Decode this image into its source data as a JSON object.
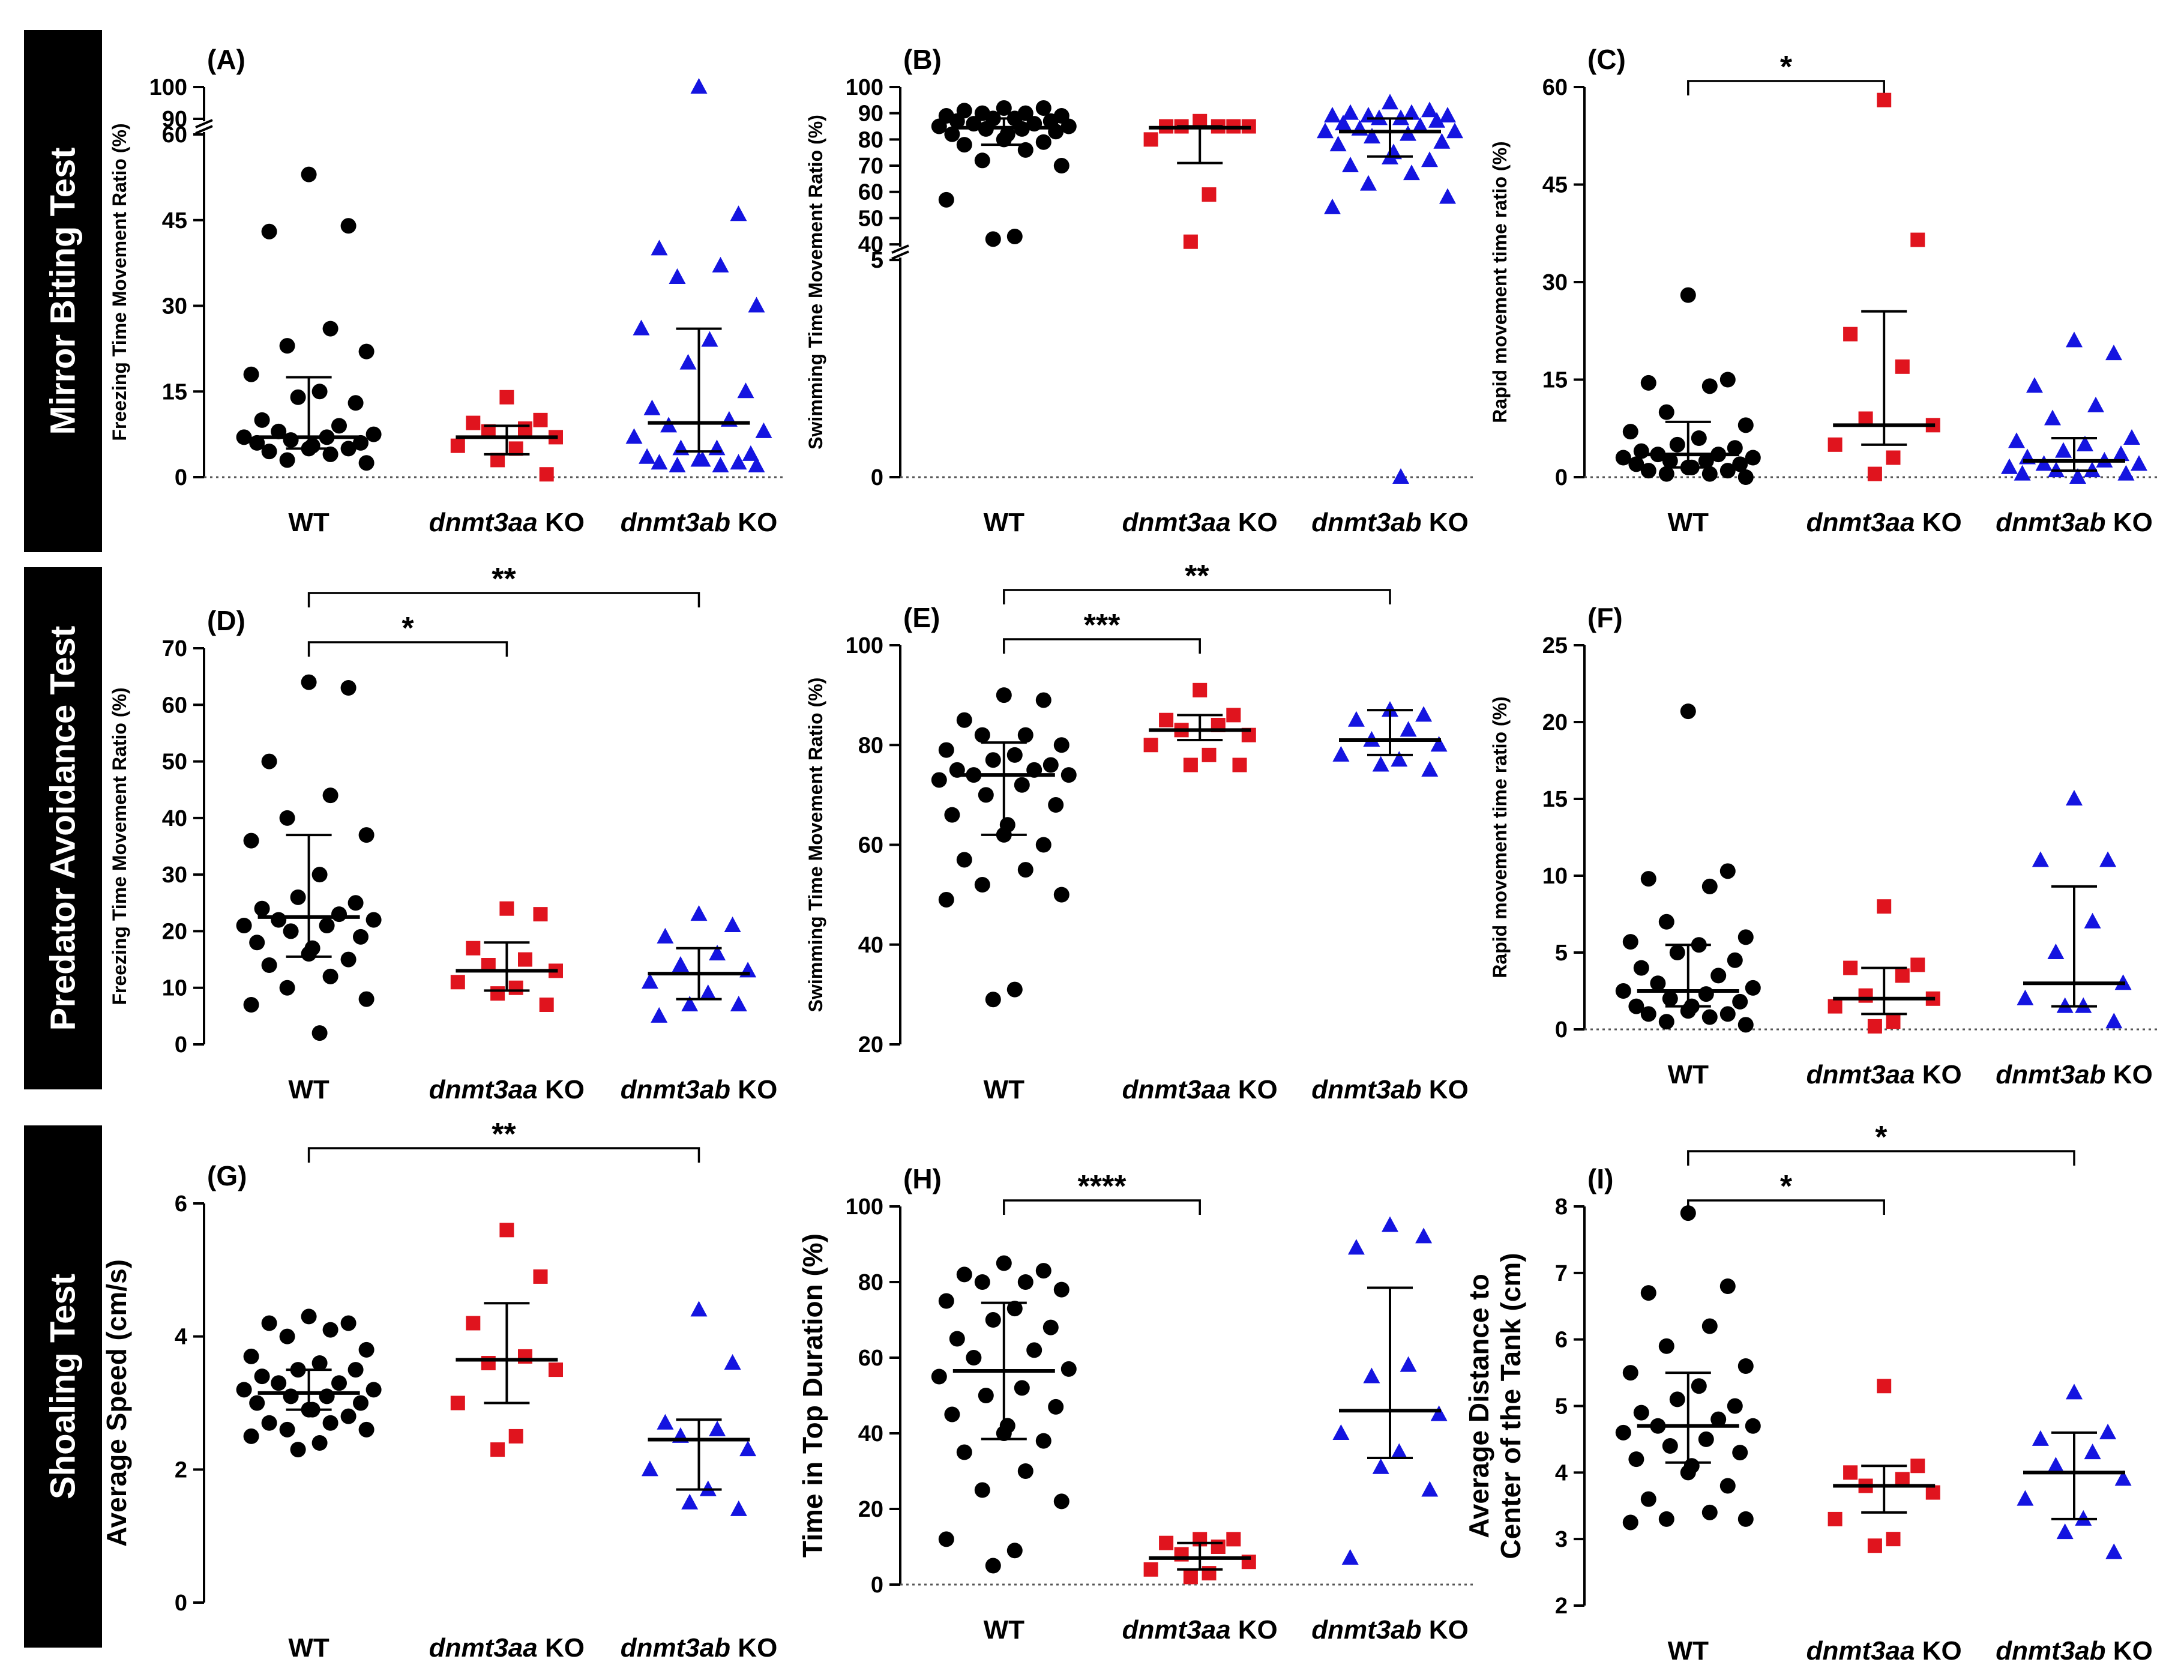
{
  "rows": [
    {
      "label": "Mirror Biting Test"
    },
    {
      "label": "Predator Avoidance Test"
    },
    {
      "label": "Shoaling Test"
    }
  ],
  "groups": [
    {
      "italic": "",
      "plain": "WT",
      "color": "#000000",
      "marker": "circle"
    },
    {
      "italic": "dnmt3aa",
      "plain": " KO",
      "color": "#e0141e",
      "marker": "square"
    },
    {
      "italic": "dnmt3ab",
      "plain": " KO",
      "color": "#1414e0",
      "marker": "triangle"
    }
  ],
  "chart_data": [
    {
      "type": "scatter",
      "panel": "(A)",
      "ylabel": "Freezing Time Movement Ratio (%)",
      "yticks": [
        0,
        15,
        30,
        45,
        60,
        90,
        100
      ],
      "ylim": [
        0,
        100
      ],
      "axis_break": [
        60,
        90
      ],
      "baseline_dotted": true,
      "series": [
        {
          "group": "WT",
          "median": 7,
          "q1": 5,
          "q3": 17.5,
          "values": [
            53,
            44,
            43,
            26,
            23,
            22,
            18,
            15,
            14,
            13,
            10,
            9,
            8,
            7.5,
            7,
            7,
            6.5,
            6,
            6,
            5.5,
            5,
            5,
            4.5,
            4,
            3,
            2.5
          ]
        },
        {
          "group": "dnmt3aa KO",
          "median": 7,
          "q1": 4,
          "q3": 9,
          "values": [
            14,
            10,
            9.5,
            8.5,
            8,
            7,
            5.5,
            5,
            3,
            0.5
          ]
        },
        {
          "group": "dnmt3ab KO",
          "median": 9.5,
          "q1": 4.5,
          "q3": 26,
          "values": [
            100,
            46,
            40,
            37,
            35,
            30,
            26,
            24,
            20,
            15,
            12,
            10,
            9,
            8,
            7,
            5,
            5,
            4,
            3.5,
            3,
            3,
            2.5,
            2.5,
            2,
            2,
            2
          ]
        }
      ]
    },
    {
      "type": "scatter",
      "panel": "(B)",
      "ylabel": "Swimming Time Movement  Ratio (%)",
      "yticks": [
        0,
        5,
        40,
        50,
        60,
        70,
        80,
        90,
        100
      ],
      "ylim": [
        0,
        100
      ],
      "axis_break": [
        5,
        40
      ],
      "baseline_dotted": true,
      "series": [
        {
          "group": "WT",
          "median": 84.5,
          "q1": 78,
          "q3": 88,
          "values": [
            92,
            92,
            91,
            90,
            90,
            89,
            89,
            88,
            88,
            87,
            87,
            86,
            86,
            85,
            85,
            84,
            84,
            83,
            82,
            82,
            80,
            79,
            78,
            76,
            72,
            70,
            57,
            43,
            42
          ]
        },
        {
          "group": "dnmt3aa KO",
          "median": 84.5,
          "q1": 71,
          "q3": 85,
          "values": [
            87,
            85,
            85,
            85,
            85,
            85,
            80,
            59,
            41
          ]
        },
        {
          "group": "dnmt3ab KO",
          "median": 83,
          "q1": 73.5,
          "q3": 88,
          "values": [
            94,
            91,
            90,
            90,
            89,
            89,
            89,
            88,
            88,
            87,
            86,
            85,
            84,
            83,
            83,
            82,
            81,
            79,
            78,
            75,
            73,
            72,
            70,
            67,
            63,
            58,
            54,
            0
          ]
        }
      ]
    },
    {
      "type": "scatter",
      "panel": "(C)",
      "ylabel": "Rapid movement time ratio (%)",
      "yticks": [
        0,
        15,
        30,
        45,
        60
      ],
      "ylim": [
        0,
        60
      ],
      "baseline_dotted": true,
      "significance": [
        {
          "from": 0,
          "to": 1,
          "label": "*",
          "level": 1
        }
      ],
      "series": [
        {
          "group": "WT",
          "median": 3.5,
          "q1": 1.5,
          "q3": 8.5,
          "values": [
            28,
            15,
            14.5,
            14,
            10,
            8,
            7,
            6,
            5,
            4.5,
            4,
            3.5,
            3.5,
            3,
            3,
            2.5,
            2.5,
            2,
            2,
            1.5,
            1.5,
            1,
            1,
            0.5,
            0.5,
            0
          ]
        },
        {
          "group": "dnmt3aa KO",
          "median": 8,
          "q1": 5,
          "q3": 25.5,
          "values": [
            58,
            36.5,
            22,
            17,
            9,
            8,
            5,
            3,
            0.5
          ]
        },
        {
          "group": "dnmt3ab KO",
          "median": 2.5,
          "q1": 1,
          "q3": 6,
          "values": [
            21,
            19,
            14,
            11,
            9,
            6,
            5.5,
            5,
            4,
            3.5,
            3,
            2.5,
            2,
            2,
            1.5,
            1,
            1,
            0.5,
            0.5,
            0
          ]
        }
      ]
    },
    {
      "type": "scatter",
      "panel": "(D)",
      "ylabel": "Freezing Time Movement Ratio (%)",
      "yticks": [
        0,
        10,
        20,
        30,
        40,
        50,
        60,
        70
      ],
      "ylim": [
        0,
        70
      ],
      "significance": [
        {
          "from": 0,
          "to": 1,
          "label": "*",
          "level": 1
        },
        {
          "from": 0,
          "to": 2,
          "label": "**",
          "level": 2
        }
      ],
      "series": [
        {
          "group": "WT",
          "median": 22.5,
          "q1": 15.5,
          "q3": 37,
          "values": [
            64,
            63,
            50,
            44,
            40,
            37,
            36,
            30,
            26,
            25,
            24,
            23,
            22,
            22,
            21,
            21,
            20,
            19,
            18,
            17,
            16,
            15,
            14,
            12,
            10,
            8,
            7,
            2
          ]
        },
        {
          "group": "dnmt3aa KO",
          "median": 13,
          "q1": 9.5,
          "q3": 18,
          "values": [
            24,
            23,
            17,
            15,
            14,
            13,
            11,
            10,
            9,
            7
          ]
        },
        {
          "group": "dnmt3ab KO",
          "median": 12.5,
          "q1": 8,
          "q3": 17,
          "values": [
            23,
            21,
            19,
            16,
            14,
            13,
            11,
            9,
            7,
            7,
            5
          ]
        }
      ]
    },
    {
      "type": "scatter",
      "panel": "(E)",
      "ylabel": "Swimming Time Movement  Ratio (%)",
      "yticks": [
        20,
        40,
        60,
        80,
        100
      ],
      "ylim": [
        20,
        100
      ],
      "significance": [
        {
          "from": 0,
          "to": 1,
          "label": "***",
          "level": 1
        },
        {
          "from": 0,
          "to": 2,
          "label": "**",
          "level": 2
        }
      ],
      "series": [
        {
          "group": "WT",
          "median": 74,
          "q1": 62,
          "q3": 80.5,
          "values": [
            90,
            89,
            85,
            82,
            82,
            80,
            79,
            78,
            77,
            76,
            75,
            75,
            74,
            74,
            73,
            72,
            70,
            68,
            66,
            64,
            62,
            60,
            57,
            55,
            52,
            50,
            49,
            31,
            29
          ]
        },
        {
          "group": "dnmt3aa KO",
          "median": 83,
          "q1": 81,
          "q3": 86,
          "values": [
            91,
            86,
            85,
            84,
            83,
            82,
            80,
            78,
            76,
            76
          ]
        },
        {
          "group": "dnmt3ab KO",
          "median": 81,
          "q1": 78,
          "q3": 87,
          "values": [
            87,
            86,
            85,
            83,
            81,
            80,
            78,
            77,
            76,
            75
          ]
        }
      ]
    },
    {
      "type": "scatter",
      "panel": "(F)",
      "ylabel": "Rapid movement time ratio (%)",
      "yticks": [
        0,
        5,
        10,
        15,
        20,
        25
      ],
      "ylim": [
        0,
        25
      ],
      "baseline_dotted": true,
      "series": [
        {
          "group": "WT",
          "median": 2.5,
          "q1": 1.5,
          "q3": 5.5,
          "values": [
            20.7,
            10.3,
            9.8,
            9.3,
            7,
            6,
            5.7,
            5.5,
            5,
            4.5,
            4,
            3.5,
            3,
            2.7,
            2.5,
            2.3,
            2,
            1.8,
            1.5,
            1.5,
            1.2,
            1,
            1,
            0.8,
            0.5,
            0.3
          ]
        },
        {
          "group": "dnmt3aa KO",
          "median": 2,
          "q1": 1,
          "q3": 4,
          "values": [
            8,
            4.2,
            4,
            3.5,
            2.2,
            2,
            1.5,
            0.5,
            0.2
          ]
        },
        {
          "group": "dnmt3ab KO",
          "median": 3,
          "q1": 1.5,
          "q3": 9.3,
          "values": [
            15,
            11,
            11,
            7,
            5,
            3,
            2,
            1.5,
            1.5,
            0.5
          ]
        }
      ]
    },
    {
      "type": "scatter",
      "panel": "(G)",
      "ylabel": "Average Speed (cm/s)",
      "yticks": [
        0,
        2,
        4,
        6
      ],
      "ylim": [
        0,
        6
      ],
      "significance": [
        {
          "from": 0,
          "to": 2,
          "label": "**",
          "level": 2
        }
      ],
      "series": [
        {
          "group": "WT",
          "median": 3.15,
          "q1": 2.9,
          "q3": 3.5,
          "values": [
            4.3,
            4.2,
            4.2,
            4.1,
            4.0,
            3.8,
            3.7,
            3.6,
            3.5,
            3.5,
            3.4,
            3.3,
            3.3,
            3.2,
            3.2,
            3.1,
            3.1,
            3.0,
            3.0,
            2.9,
            2.9,
            2.8,
            2.7,
            2.7,
            2.6,
            2.6,
            2.5,
            2.4,
            2.3
          ]
        },
        {
          "group": "dnmt3aa KO",
          "median": 3.65,
          "q1": 3.0,
          "q3": 4.5,
          "values": [
            5.6,
            4.9,
            4.2,
            3.7,
            3.6,
            3.5,
            3.0,
            2.5,
            2.3
          ]
        },
        {
          "group": "dnmt3ab KO",
          "median": 2.45,
          "q1": 1.7,
          "q3": 2.75,
          "values": [
            4.4,
            3.6,
            2.7,
            2.6,
            2.5,
            2.3,
            2.0,
            1.7,
            1.5,
            1.4
          ]
        }
      ]
    },
    {
      "type": "scatter",
      "panel": "(H)",
      "ylabel": "Time in Top Duration (%)",
      "yticks": [
        0,
        20,
        40,
        60,
        80,
        100
      ],
      "ylim": [
        0,
        100
      ],
      "baseline_dotted": true,
      "significance": [
        {
          "from": 0,
          "to": 1,
          "label": "****",
          "level": 1
        }
      ],
      "series": [
        {
          "group": "WT",
          "median": 56.5,
          "q1": 38.5,
          "q3": 74.5,
          "values": [
            85,
            83,
            82,
            80,
            80,
            78,
            75,
            73,
            70,
            68,
            65,
            62,
            60,
            57,
            55,
            52,
            50,
            47,
            45,
            42,
            40,
            38,
            35,
            30,
            25,
            22,
            12,
            9,
            5
          ]
        },
        {
          "group": "dnmt3aa KO",
          "median": 7,
          "q1": 4,
          "q3": 11,
          "values": [
            12,
            12,
            11,
            10,
            8,
            6,
            4,
            3,
            2
          ]
        },
        {
          "group": "dnmt3ab KO",
          "median": 46,
          "q1": 33.5,
          "q3": 78.5,
          "values": [
            95,
            92,
            89,
            58,
            55,
            45,
            40,
            35,
            31,
            25,
            7
          ]
        }
      ]
    },
    {
      "type": "scatter",
      "panel": "(I)",
      "ylabel": "Average Distance to\nCenter of the Tank (cm)",
      "yticks": [
        2,
        3,
        4,
        5,
        6,
        7,
        8
      ],
      "ylim": [
        2,
        8
      ],
      "significance": [
        {
          "from": 0,
          "to": 1,
          "label": "*",
          "level": 1
        },
        {
          "from": 0,
          "to": 2,
          "label": "*",
          "level": 2
        }
      ],
      "series": [
        {
          "group": "WT",
          "median": 4.7,
          "q1": 4.15,
          "q3": 5.5,
          "values": [
            7.9,
            6.8,
            6.7,
            6.2,
            5.9,
            5.6,
            5.5,
            5.3,
            5.1,
            5.0,
            4.9,
            4.8,
            4.7,
            4.7,
            4.6,
            4.5,
            4.4,
            4.3,
            4.2,
            4.1,
            4.0,
            3.8,
            3.6,
            3.4,
            3.3,
            3.3,
            3.25
          ]
        },
        {
          "group": "dnmt3aa KO",
          "median": 3.8,
          "q1": 3.4,
          "q3": 4.1,
          "values": [
            5.3,
            4.1,
            4.0,
            3.9,
            3.8,
            3.7,
            3.3,
            3.0,
            2.9
          ]
        },
        {
          "group": "dnmt3ab KO",
          "median": 4.0,
          "q1": 3.3,
          "q3": 4.6,
          "values": [
            5.2,
            4.6,
            4.5,
            4.3,
            4.1,
            3.9,
            3.6,
            3.3,
            3.1,
            2.8
          ]
        }
      ]
    }
  ]
}
